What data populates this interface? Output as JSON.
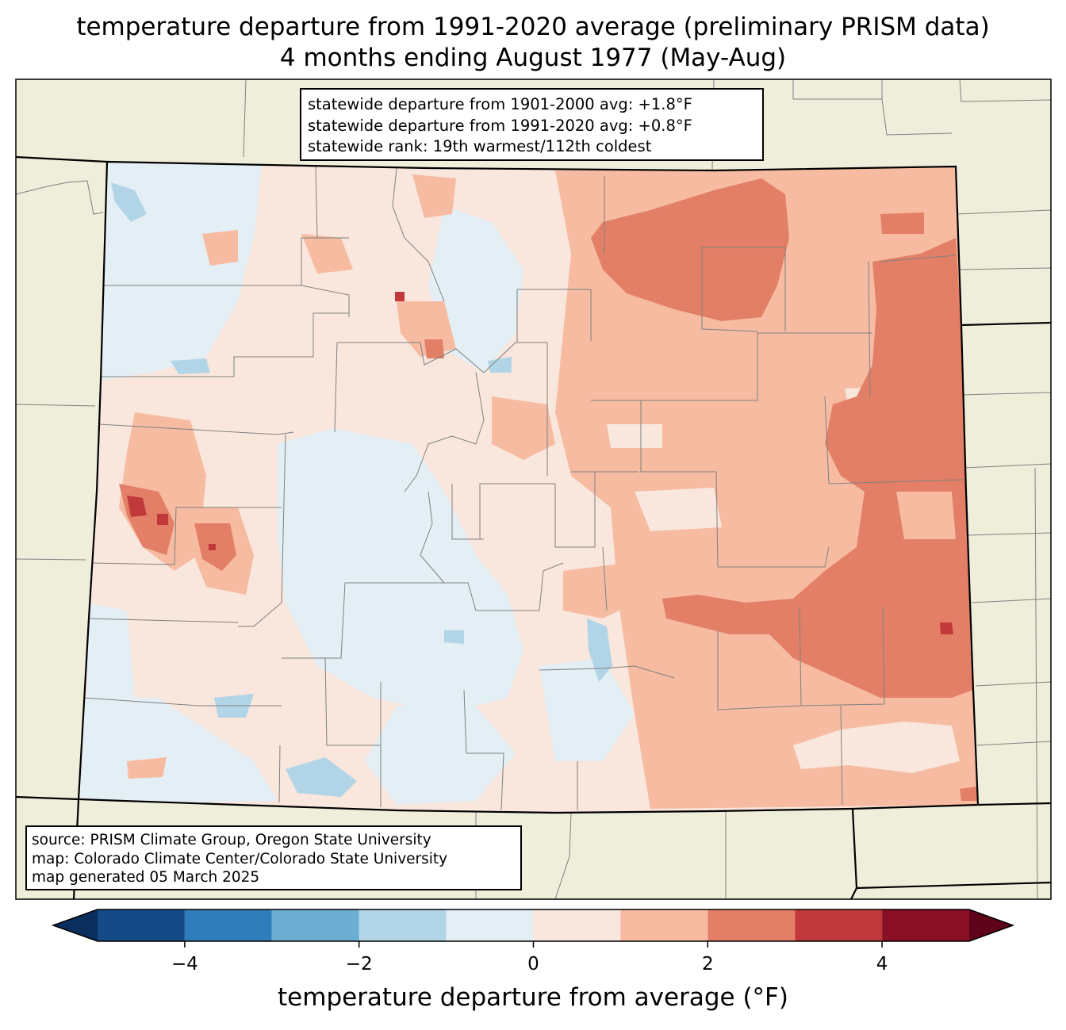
{
  "title": {
    "line1": "temperature departure from 1991-2020 average (preliminary PRISM data)",
    "line2": "4 months ending August 1977 (May-Aug)"
  },
  "stats": {
    "line1": "statewide departure from 1901-2000 avg: +1.8°F",
    "line2": "statewide departure from 1991-2020 avg: +0.8°F",
    "line3": "statewide rank: 19th warmest/112th coldest"
  },
  "source": {
    "line1": "source: PRISM Climate Group, Oregon State University",
    "line2": "map: Colorado Climate Center/Colorado State University",
    "line3": "map generated 05 March 2025"
  },
  "colorbar": {
    "label": "temperature departure from average (°F)",
    "range": [
      -5,
      5
    ],
    "ticks": [
      {
        "value": -4,
        "label": "−4"
      },
      {
        "value": -2,
        "label": "−2"
      },
      {
        "value": 0,
        "label": "0"
      },
      {
        "value": 2,
        "label": "2"
      },
      {
        "value": 4,
        "label": "4"
      }
    ],
    "bins": [
      {
        "from": -5,
        "to": -4,
        "color": "#144b86"
      },
      {
        "from": -4,
        "to": -3,
        "color": "#2f7dbb"
      },
      {
        "from": -3,
        "to": -2,
        "color": "#6baed2"
      },
      {
        "from": -2,
        "to": -1,
        "color": "#b1d5e7"
      },
      {
        "from": -1,
        "to": 0,
        "color": "#e4eef5"
      },
      {
        "from": 0,
        "to": 1,
        "color": "#f9e6dd"
      },
      {
        "from": 1,
        "to": 2,
        "color": "#f6bba1"
      },
      {
        "from": 2,
        "to": 3,
        "color": "#e27f66"
      },
      {
        "from": 3,
        "to": 4,
        "color": "#c2393c"
      },
      {
        "from": 4,
        "to": 5,
        "color": "#890f24"
      }
    ],
    "under_color": "#0a2f5e",
    "over_color": "#5e0319"
  },
  "colors": {
    "land": "#efeedb",
    "state_border": "#000000",
    "county_border": "#808080"
  }
}
